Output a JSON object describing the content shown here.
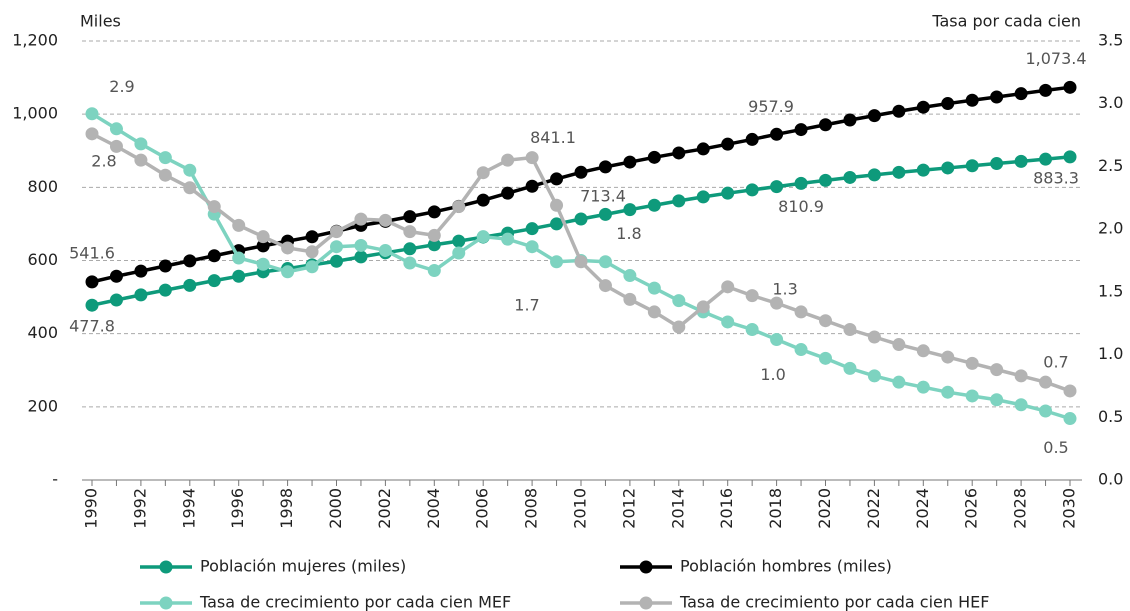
{
  "chart_data": {
    "type": "line",
    "y_label": "Miles",
    "y2_label": "Tasa por cada cien",
    "categories": [
      "1990",
      null,
      "1992",
      null,
      "1994",
      null,
      "1996",
      null,
      "1998",
      null,
      "2000",
      null,
      "2002",
      null,
      "2004",
      null,
      "2006",
      null,
      "2008",
      null,
      "2010",
      null,
      "2012",
      null,
      "2014",
      null,
      "2016",
      null,
      "2018",
      null,
      "2020",
      null,
      "2022",
      null,
      "2024",
      null,
      "2026",
      null,
      "2028",
      null,
      "2030"
    ],
    "ylim": [
      0,
      1200
    ],
    "yticks": [
      {
        "value": 0,
        "label": "-"
      },
      200,
      400,
      600,
      800,
      {
        "value": 1000,
        "label": "1,000"
      },
      {
        "value": 1200,
        "label": "1,200"
      }
    ],
    "y2lim": [
      0,
      3.5
    ],
    "y2ticks": [
      {
        "value": 0,
        "label": "0.0"
      },
      0.5,
      {
        "value": 1,
        "label": "1.0"
      },
      1.5,
      {
        "value": 2,
        "label": "2.0"
      },
      2.5,
      {
        "value": 3,
        "label": "3.0"
      },
      3.5
    ],
    "grid": true,
    "legend": "bottom",
    "series": [
      {
        "name": "Población mujeres (miles)",
        "color": "#0e9a7b",
        "values": [
          477.8,
          492,
          506,
          519,
          532,
          545,
          557,
          569,
          578,
          588,
          598,
          610,
          621,
          632,
          643,
          653,
          664,
          675,
          687,
          700,
          713.4,
          726,
          739,
          751,
          763,
          774,
          784,
          793,
          802,
          810.9,
          819,
          827,
          834,
          841,
          847,
          853,
          859,
          865,
          871,
          877,
          883.3
        ],
        "value_labels": [
          "477.8",
          null,
          null,
          null,
          null,
          null,
          null,
          null,
          null,
          null,
          null,
          null,
          null,
          null,
          null,
          null,
          null,
          null,
          null,
          null,
          "713.4",
          null,
          null,
          null,
          null,
          null,
          null,
          null,
          null,
          "810.9",
          null,
          null,
          null,
          null,
          null,
          null,
          null,
          null,
          null,
          null,
          "883.3"
        ]
      },
      {
        "name": "Población hombres (miles)",
        "color": "#000000",
        "values": [
          541.6,
          557,
          571,
          585,
          599,
          613,
          627,
          640,
          653,
          665,
          680,
          696,
          707,
          720,
          733,
          748,
          765,
          784,
          803,
          823,
          841.1,
          856,
          869,
          882,
          894,
          905,
          918,
          931,
          945,
          957.9,
          971,
          984,
          996,
          1008,
          1019,
          1029,
          1038,
          1047,
          1056,
          1065,
          1073.4
        ],
        "value_labels": [
          "541.6",
          null,
          null,
          null,
          null,
          null,
          null,
          null,
          null,
          null,
          null,
          null,
          null,
          null,
          null,
          null,
          null,
          null,
          null,
          null,
          "841.1",
          null,
          null,
          null,
          null,
          null,
          null,
          null,
          null,
          "957.9",
          null,
          null,
          null,
          null,
          null,
          null,
          null,
          null,
          null,
          null,
          "1,073.4"
        ]
      },
      {
        "name": "Tasa de crecimiento por cada cien MEF",
        "color": "#7dd3c0",
        "axis": "y2",
        "values": [
          2.92,
          2.8,
          2.68,
          2.57,
          2.47,
          2.12,
          1.77,
          1.72,
          1.66,
          1.7,
          1.86,
          1.87,
          1.83,
          1.73,
          1.67,
          1.81,
          1.94,
          1.92,
          1.86,
          1.74,
          1.75,
          1.74,
          1.63,
          1.53,
          1.43,
          1.34,
          1.26,
          1.2,
          1.12,
          1.04,
          0.97,
          0.89,
          0.83,
          0.78,
          0.74,
          0.7,
          0.67,
          0.64,
          0.6,
          0.55,
          0.49
        ],
        "value_labels": [
          "2.9",
          null,
          null,
          null,
          null,
          null,
          null,
          null,
          null,
          null,
          null,
          null,
          null,
          null,
          null,
          null,
          null,
          null,
          null,
          null,
          "1.8",
          null,
          null,
          null,
          null,
          null,
          null,
          null,
          null,
          "1.0",
          null,
          null,
          null,
          null,
          null,
          null,
          null,
          null,
          null,
          null,
          "0.5"
        ]
      },
      {
        "name": "Tasa de crecimiento por cada cien HEF",
        "color": "#b3b3b3",
        "axis": "y2",
        "values": [
          2.76,
          2.66,
          2.55,
          2.43,
          2.33,
          2.18,
          2.03,
          1.94,
          1.85,
          1.82,
          1.98,
          2.08,
          2.07,
          1.98,
          1.95,
          2.18,
          2.45,
          2.55,
          2.57,
          2.19,
          1.74,
          1.55,
          1.44,
          1.34,
          1.22,
          1.38,
          1.54,
          1.47,
          1.41,
          1.34,
          1.27,
          1.2,
          1.14,
          1.08,
          1.03,
          0.98,
          0.93,
          0.88,
          0.83,
          0.78,
          0.71
        ],
        "value_labels": [
          "2.8",
          null,
          null,
          null,
          null,
          null,
          null,
          null,
          null,
          null,
          null,
          null,
          null,
          null,
          null,
          null,
          null,
          null,
          null,
          null,
          "1.7",
          null,
          null,
          null,
          null,
          null,
          null,
          null,
          null,
          "1.3",
          null,
          null,
          null,
          null,
          null,
          null,
          null,
          null,
          null,
          null,
          "0.7"
        ]
      }
    ]
  }
}
